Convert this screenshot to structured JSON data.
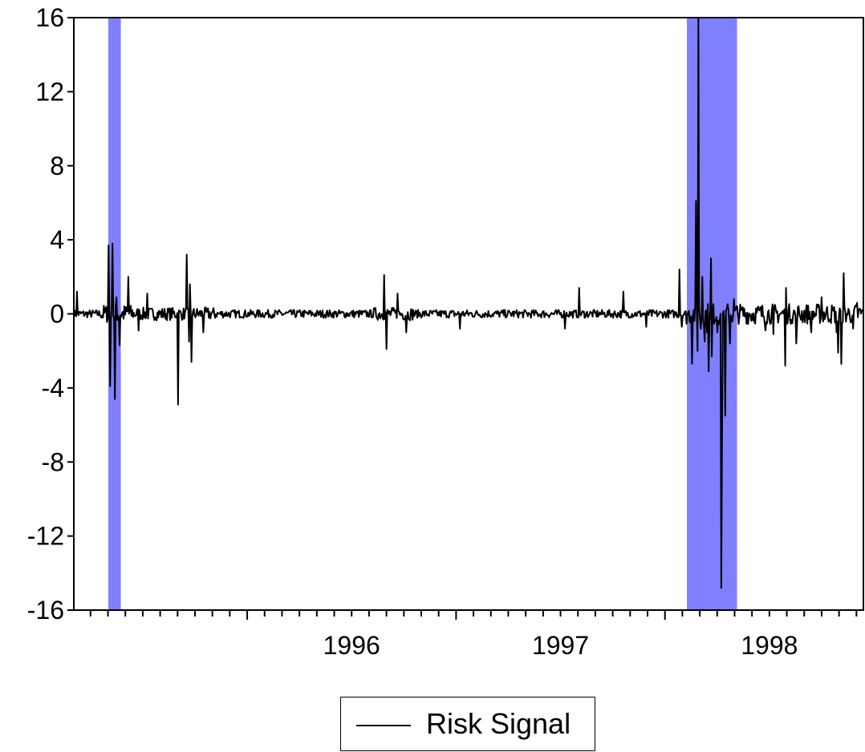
{
  "chart_data": {
    "type": "line",
    "title": "",
    "xlabel": "",
    "ylabel": "",
    "ylim": [
      -16,
      16
    ],
    "yticks": [
      "16",
      "12",
      "8",
      "4",
      "0",
      "-4",
      "-8",
      "-12",
      "-16"
    ],
    "xlim": [
      1995.17,
      1998.95
    ],
    "xticks": [
      {
        "label": "1996",
        "x": 1996.0
      },
      {
        "label": "1997",
        "x": 1997.0
      },
      {
        "label": "1998",
        "x": 1998.0
      }
    ],
    "grid": false,
    "legend_position": "bottom-center",
    "shaded_regions": [
      {
        "start": 1995.335,
        "end": 1995.395,
        "color": "#8080ff"
      },
      {
        "start": 1998.105,
        "end": 1998.345,
        "color": "#8080ff"
      }
    ],
    "series": [
      {
        "name": "Risk Signal",
        "color": "#000000",
        "spikes": [
          {
            "x": 1995.185,
            "y": 1.2
          },
          {
            "x": 1995.335,
            "y": 3.7
          },
          {
            "x": 1995.345,
            "y": -3.9
          },
          {
            "x": 1995.355,
            "y": 3.8
          },
          {
            "x": 1995.365,
            "y": -4.6
          },
          {
            "x": 1995.375,
            "y": 0.9
          },
          {
            "x": 1995.39,
            "y": -1.7
          },
          {
            "x": 1995.43,
            "y": 2.0
          },
          {
            "x": 1995.48,
            "y": -0.9
          },
          {
            "x": 1995.52,
            "y": 1.1
          },
          {
            "x": 1995.67,
            "y": -4.9
          },
          {
            "x": 1995.71,
            "y": 3.2
          },
          {
            "x": 1995.72,
            "y": -1.5
          },
          {
            "x": 1995.725,
            "y": 1.6
          },
          {
            "x": 1995.735,
            "y": -2.6
          },
          {
            "x": 1995.79,
            "y": -1.0
          },
          {
            "x": 1996.655,
            "y": 2.1
          },
          {
            "x": 1996.665,
            "y": -1.9
          },
          {
            "x": 1996.72,
            "y": 1.1
          },
          {
            "x": 1996.76,
            "y": -1.0
          },
          {
            "x": 1997.02,
            "y": -0.8
          },
          {
            "x": 1997.52,
            "y": -0.8
          },
          {
            "x": 1997.59,
            "y": 1.4
          },
          {
            "x": 1997.8,
            "y": 1.2
          },
          {
            "x": 1997.91,
            "y": -0.7
          },
          {
            "x": 1998.07,
            "y": 2.4
          },
          {
            "x": 1998.08,
            "y": -0.7
          },
          {
            "x": 1998.13,
            "y": -2.7
          },
          {
            "x": 1998.15,
            "y": 6.1
          },
          {
            "x": 1998.155,
            "y": -2.0
          },
          {
            "x": 1998.16,
            "y": 16.0
          },
          {
            "x": 1998.17,
            "y": -0.8
          },
          {
            "x": 1998.18,
            "y": 2.0
          },
          {
            "x": 1998.19,
            "y": -1.5
          },
          {
            "x": 1998.2,
            "y": -1.0
          },
          {
            "x": 1998.21,
            "y": -3.1
          },
          {
            "x": 1998.22,
            "y": 3.0
          },
          {
            "x": 1998.225,
            "y": -2.3
          },
          {
            "x": 1998.25,
            "y": -1.0
          },
          {
            "x": 1998.268,
            "y": -14.8
          },
          {
            "x": 1998.272,
            "y": -6.7
          },
          {
            "x": 1998.29,
            "y": -5.5
          },
          {
            "x": 1998.31,
            "y": -1.6
          },
          {
            "x": 1998.33,
            "y": 0.8
          },
          {
            "x": 1998.48,
            "y": -0.9
          },
          {
            "x": 1998.52,
            "y": -1.1
          },
          {
            "x": 1998.575,
            "y": -2.8
          },
          {
            "x": 1998.58,
            "y": 1.4
          },
          {
            "x": 1998.63,
            "y": -1.6
          },
          {
            "x": 1998.7,
            "y": -1.0
          },
          {
            "x": 1998.75,
            "y": 0.9
          },
          {
            "x": 1998.82,
            "y": -1.0
          },
          {
            "x": 1998.83,
            "y": -2.1
          },
          {
            "x": 1998.845,
            "y": -2.7
          },
          {
            "x": 1998.855,
            "y": 2.2
          },
          {
            "x": 1998.9,
            "y": -0.8
          },
          {
            "x": 1998.92,
            "y": 0.6
          }
        ]
      }
    ]
  },
  "legend": {
    "label": "Risk Signal"
  }
}
